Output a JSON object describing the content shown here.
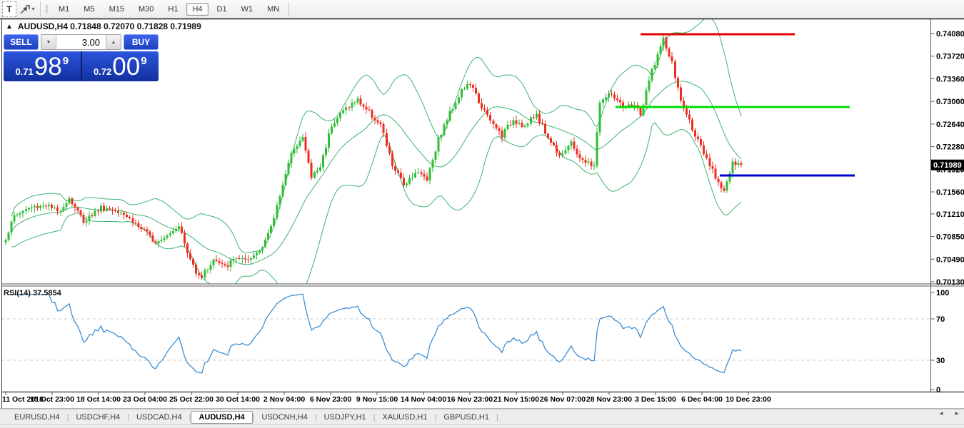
{
  "toolbar": {
    "text_tool_label": "T",
    "dropdown_arrow": "▾",
    "timeframes": [
      "M1",
      "M5",
      "M15",
      "M30",
      "H1",
      "H4",
      "D1",
      "W1",
      "MN"
    ],
    "active_timeframe": "H4"
  },
  "chart": {
    "panel_toggle_icon": "▲",
    "title": "AUDUSD,H4  0.71848 0.72070 0.71828 0.71989"
  },
  "one_click": {
    "sell_label": "SELL",
    "buy_label": "BUY",
    "volume": "3.00",
    "spinner_down_icon": "▼",
    "spinner_up_icon": "▲",
    "sell_price": {
      "small": "0.71",
      "big": "98",
      "sup": "9"
    },
    "buy_price": {
      "small": "0.72",
      "big": "00",
      "sup": "9"
    }
  },
  "price_axis": {
    "labels": [
      "0.74080",
      "0.73720",
      "0.73360",
      "0.73000",
      "0.72640",
      "0.72280",
      "0.71920",
      "0.71560",
      "0.71210",
      "0.70850",
      "0.70490",
      "0.70130"
    ],
    "current_price": "0.71989"
  },
  "rsi_pane": {
    "label": "RSI(14) 37.5854",
    "axis_labels": [
      "100",
      "70",
      "30",
      "0"
    ],
    "level_high": 70,
    "level_low": 30
  },
  "time_axis": {
    "labels": [
      "11 Oct 2018",
      "15 Oct 23:00",
      "18 Oct 14:00",
      "23 Oct 04:00",
      "25 Oct 22:00",
      "30 Oct 14:00",
      "2 Nov 04:00",
      "6 Nov 23:00",
      "9 Nov 15:00",
      "14 Nov 04:00",
      "16 Nov 23:00",
      "21 Nov 15:00",
      "26 Nov 07:00",
      "28 Nov 23:00",
      "3 Dec 15:00",
      "6 Dec 04:00",
      "10 Dec 23:00"
    ]
  },
  "tabs": {
    "items": [
      {
        "label": "EURUSD,H4",
        "active": false
      },
      {
        "label": "USDCHF,H4",
        "active": false
      },
      {
        "label": "USDCAD,H4",
        "active": false
      },
      {
        "label": "AUDUSD,H4",
        "active": true
      },
      {
        "label": "USDCNH,H4",
        "active": false
      },
      {
        "label": "USDJPY,H1",
        "active": false
      },
      {
        "label": "XAUUSD,H1",
        "active": false
      },
      {
        "label": "GBPUSD,H1",
        "active": false
      }
    ],
    "scroll_left_icon": "◄",
    "scroll_right_icon": "►"
  },
  "colors": {
    "bull": "#2fbe35",
    "bear": "#ef2e22",
    "bands": "#3CB371",
    "rsi_line": "#3a8ed6",
    "rsi_levels": "#c8c8c8",
    "obj_red": "#e60000",
    "obj_green": "#00dd00",
    "obj_blue": "#0000cc",
    "axis_line": "#555555",
    "price_tag_bg": "#000000",
    "price_tag_text": "#ffffff"
  },
  "chart_data": {
    "type": "candlestick",
    "symbol": "AUDUSD",
    "timeframe": "H4",
    "bars": 256,
    "ylim": [
      0.7013,
      0.7408
    ],
    "grid": false,
    "last_open": 0.71848,
    "last_high": 0.7207,
    "last_low": 0.71828,
    "last_close": 0.71989,
    "price_anchors": [
      [
        0,
        0.7082
      ],
      [
        3,
        0.7118
      ],
      [
        8,
        0.713
      ],
      [
        14,
        0.7136
      ],
      [
        18,
        0.7124
      ],
      [
        22,
        0.7146
      ],
      [
        27,
        0.711
      ],
      [
        33,
        0.7131
      ],
      [
        40,
        0.7126
      ],
      [
        46,
        0.7101
      ],
      [
        52,
        0.7077
      ],
      [
        57,
        0.7092
      ],
      [
        60,
        0.7104
      ],
      [
        63,
        0.7058
      ],
      [
        66,
        0.703
      ],
      [
        68,
        0.7022
      ],
      [
        72,
        0.7048
      ],
      [
        76,
        0.7036
      ],
      [
        80,
        0.7052
      ],
      [
        84,
        0.7044
      ],
      [
        88,
        0.7064
      ],
      [
        92,
        0.7098
      ],
      [
        96,
        0.717
      ],
      [
        100,
        0.7228
      ],
      [
        103,
        0.7242
      ],
      [
        106,
        0.718
      ],
      [
        109,
        0.7196
      ],
      [
        113,
        0.7264
      ],
      [
        118,
        0.729
      ],
      [
        122,
        0.7302
      ],
      [
        126,
        0.7283
      ],
      [
        130,
        0.7262
      ],
      [
        134,
        0.7198
      ],
      [
        138,
        0.7168
      ],
      [
        142,
        0.7188
      ],
      [
        146,
        0.7178
      ],
      [
        150,
        0.724
      ],
      [
        154,
        0.7282
      ],
      [
        158,
        0.7318
      ],
      [
        161,
        0.7328
      ],
      [
        164,
        0.73
      ],
      [
        168,
        0.7268
      ],
      [
        172,
        0.7246
      ],
      [
        176,
        0.7272
      ],
      [
        180,
        0.726
      ],
      [
        184,
        0.728
      ],
      [
        188,
        0.7242
      ],
      [
        192,
        0.7216
      ],
      [
        196,
        0.7232
      ],
      [
        200,
        0.7204
      ],
      [
        204,
        0.7198
      ],
      [
        206,
        0.73
      ],
      [
        210,
        0.7312
      ],
      [
        214,
        0.7288
      ],
      [
        218,
        0.7296
      ],
      [
        220,
        0.7278
      ],
      [
        224,
        0.735
      ],
      [
        228,
        0.7398
      ],
      [
        231,
        0.736
      ],
      [
        234,
        0.73
      ],
      [
        238,
        0.7258
      ],
      [
        242,
        0.7215
      ],
      [
        246,
        0.718
      ],
      [
        249,
        0.7158
      ],
      [
        252,
        0.72
      ],
      [
        255,
        0.71989
      ]
    ],
    "peak_bar": 228,
    "peak_high": 0.7408,
    "indicators": {
      "bollinger": {
        "period": 20,
        "deviation": 2
      },
      "rsi": {
        "period": 14,
        "current_value": 37.5854
      }
    },
    "objects": [
      {
        "type": "hline-segment",
        "color_key": "obj_red",
        "price": 0.74069,
        "x1": 897,
        "x2": 1113
      },
      {
        "type": "hline-segment",
        "color_key": "obj_green",
        "price": 0.72911,
        "x1": 862,
        "x2": 1190
      },
      {
        "type": "hline-segment",
        "color_key": "obj_blue",
        "price": 0.71821,
        "x1": 1008,
        "x2": 1197
      }
    ]
  }
}
